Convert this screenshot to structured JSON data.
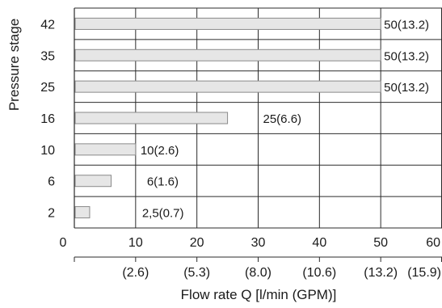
{
  "chart_data": {
    "type": "bar",
    "orientation": "horizontal",
    "categories": [
      "42",
      "35",
      "25",
      "16",
      "10",
      "6",
      "2"
    ],
    "values": [
      50,
      50,
      50,
      25,
      10,
      6,
      2.5
    ],
    "data_labels": [
      "50(13.2)",
      "50(13.2)",
      "50(13.2)",
      "25(6.6)",
      "10(2.6)",
      "6(1.6)",
      "2,5(0.7)"
    ],
    "xlabel": "Flow rate Q [l/min (GPM)]",
    "ylabel": "Pressure stage",
    "xlim": [
      0,
      60
    ],
    "x_ticks": [
      0,
      10,
      20,
      30,
      40,
      50,
      60
    ],
    "x_tick_labels": [
      "0",
      "10",
      "20",
      "30",
      "40",
      "50",
      "60"
    ],
    "secondary_ticks": [
      10,
      20,
      30,
      40,
      50,
      60
    ],
    "secondary_tick_labels": [
      "(2.6)",
      "(5.3)",
      "(8.0)",
      "(10.6)",
      "(13.2)",
      "(15.9)"
    ],
    "grid": true,
    "colors": {
      "bar_fill": "#e6e6e6",
      "bar_stroke": "#8a8a8a",
      "grid": "#2b2b2b"
    }
  }
}
